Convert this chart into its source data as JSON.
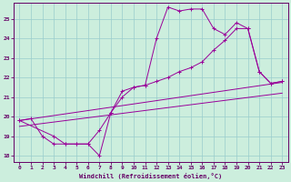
{
  "xlabel": "Windchill (Refroidissement éolien,°C)",
  "bg_color": "#cceedd",
  "grid_color": "#99cccc",
  "line_color": "#990099",
  "spine_color": "#660066",
  "xlim": [
    -0.5,
    23.5
  ],
  "ylim": [
    17.7,
    25.8
  ],
  "yticks": [
    18,
    19,
    20,
    21,
    22,
    23,
    24,
    25
  ],
  "xticks": [
    0,
    1,
    2,
    3,
    4,
    5,
    6,
    7,
    8,
    9,
    10,
    11,
    12,
    13,
    14,
    15,
    16,
    17,
    18,
    19,
    20,
    21,
    22,
    23
  ],
  "line1_x": [
    0,
    1,
    2,
    3,
    4,
    5,
    6,
    7,
    8,
    9,
    10,
    11,
    12,
    13,
    14,
    15,
    16,
    17,
    18,
    19,
    20,
    21,
    22,
    23
  ],
  "line1_y": [
    19.8,
    19.9,
    19.0,
    18.6,
    18.6,
    18.6,
    18.6,
    18.0,
    20.2,
    21.3,
    21.5,
    21.6,
    24.0,
    25.6,
    25.4,
    25.5,
    25.5,
    24.5,
    24.2,
    24.8,
    24.5,
    22.3,
    21.7,
    21.8
  ],
  "line2_x": [
    0,
    3,
    4,
    5,
    6,
    7,
    8,
    9,
    10,
    11,
    12,
    13,
    14,
    15,
    16,
    17,
    18,
    19,
    20,
    21,
    22,
    23
  ],
  "line2_y": [
    19.8,
    19.0,
    18.6,
    18.6,
    18.6,
    19.3,
    20.2,
    21.0,
    21.5,
    21.6,
    21.8,
    22.0,
    22.3,
    22.5,
    22.8,
    23.4,
    23.9,
    24.5,
    24.5,
    22.3,
    21.7,
    21.8
  ],
  "line3_x": [
    0,
    23
  ],
  "line3_y": [
    19.8,
    21.75
  ],
  "line4_x": [
    0,
    23
  ],
  "line4_y": [
    19.5,
    21.2
  ]
}
